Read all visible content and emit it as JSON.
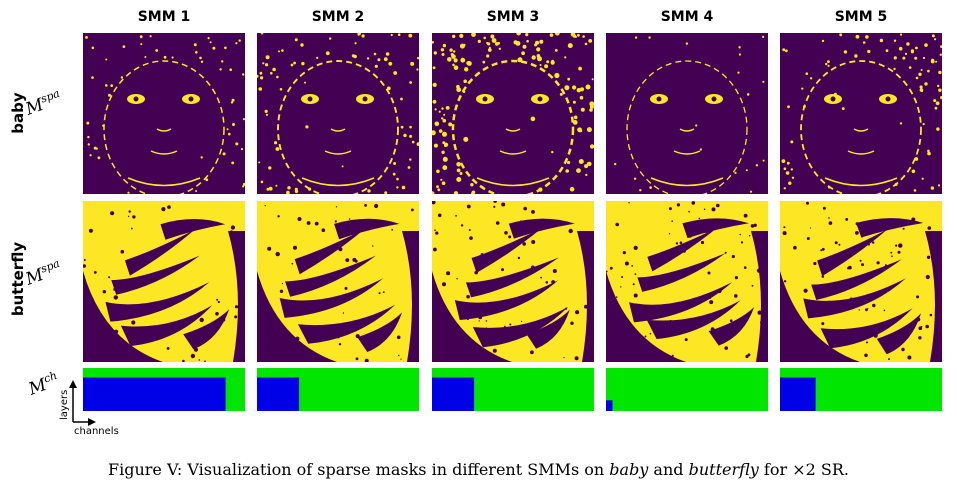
{
  "columns": [
    "SMM 1",
    "SMM 2",
    "SMM 3",
    "SMM 4",
    "SMM 5"
  ],
  "rows": [
    {
      "label": "baby",
      "mask_symbol": "M",
      "mask_sup": "spa"
    },
    {
      "label": "butterfly",
      "mask_symbol": "M",
      "mask_sup": "spa"
    }
  ],
  "channel_row": {
    "mask_symbol": "M",
    "mask_sup": "ch",
    "axis_y": "layers",
    "axis_x": "channels"
  },
  "channel_masks": [
    {
      "steps": [
        0.12,
        0.28,
        0.88,
        0.0
      ]
    },
    {
      "steps": [
        0.04,
        0.16,
        0.26,
        0.0
      ]
    },
    {
      "steps": [
        0.04,
        0.16,
        0.26,
        0.0
      ]
    },
    {
      "steps": [
        0.0,
        0.0,
        0.0,
        0.04
      ]
    },
    {
      "steps": [
        0.04,
        0.14,
        0.22,
        0.0
      ]
    }
  ],
  "colors": {
    "mask_dark": "#440154",
    "mask_yellow": "#fde725",
    "channel_off": "#00e600",
    "channel_on": "#0000e6"
  },
  "caption": {
    "prefix": "Figure V: Visualization of sparse masks in different SMMs on ",
    "em1": "baby",
    "mid": " and ",
    "em2": "butterfly",
    "suffix": " for ×2 SR."
  }
}
